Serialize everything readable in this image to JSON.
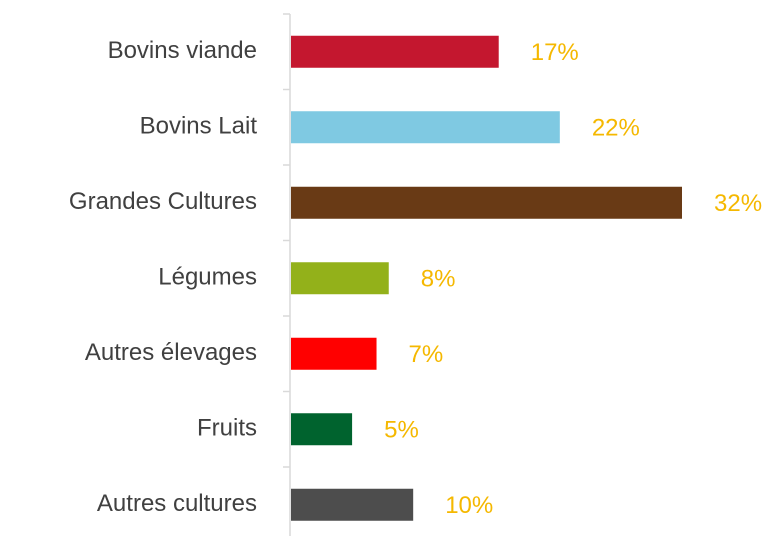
{
  "chart_data": {
    "type": "bar",
    "orientation": "horizontal",
    "categories": [
      "Bovins viande",
      "Bovins Lait",
      "Grandes Cultures",
      "Légumes",
      "Autres élevages",
      "Fruits",
      "Autres cultures"
    ],
    "values": [
      17,
      22,
      32,
      8,
      7,
      5,
      10
    ],
    "value_labels": [
      "17%",
      "22%",
      "32%",
      "8%",
      "7%",
      "5%",
      "10%"
    ],
    "colors": [
      "#c4172f",
      "#7fc9e2",
      "#693a15",
      "#93b11a",
      "#ff0000",
      "#00632e",
      "#4d4d4d"
    ]
  }
}
